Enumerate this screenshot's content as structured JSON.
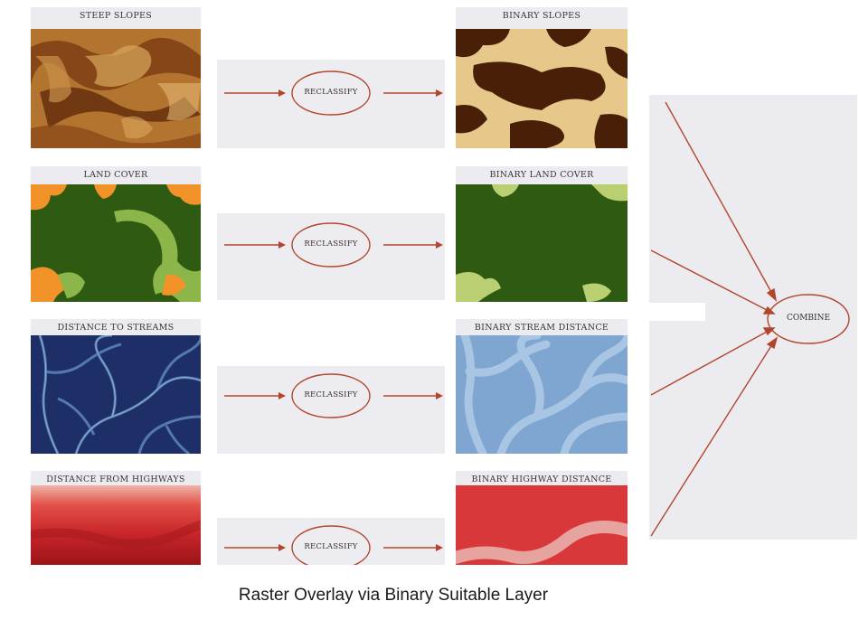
{
  "source_layers": [
    {
      "label": "STEEP SLOPES"
    },
    {
      "label": "LAND COVER"
    },
    {
      "label": "DISTANCE TO STREAMS"
    },
    {
      "label": "DISTANCE FROM HIGHWAYS"
    }
  ],
  "binary_layers": [
    {
      "label": "BINARY SLOPES"
    },
    {
      "label": "BINARY LAND COVER"
    },
    {
      "label": "BINARY STREAM DISTANCE"
    },
    {
      "label": "BINARY HIGHWAY DISTANCE"
    }
  ],
  "reclassify_steps": [
    {
      "label": "RECLASSIFY"
    },
    {
      "label": "RECLASSIFY"
    },
    {
      "label": "RECLASSIFY"
    },
    {
      "label": "RECLASSIFY"
    }
  ],
  "combine": {
    "label": "COMBINE"
  },
  "caption": "Raster Overlay via Binary Suitable Layer",
  "colors": {
    "arrow": "#b2462c",
    "label_text": "#3a3436",
    "panel_bg": "#ecebf0",
    "slopes_dark": "#4a1f08",
    "slopes_light": "#e6c98a",
    "landcover_green": "#2f5a12",
    "landcover_orange": "#f2932a",
    "landcover_lightgreen": "#8db64a",
    "streams_dark": "#1d2f66",
    "streams_light": "#7ea6d0",
    "highway_red": "#c8262a",
    "highway_light": "#e7a3a0"
  }
}
